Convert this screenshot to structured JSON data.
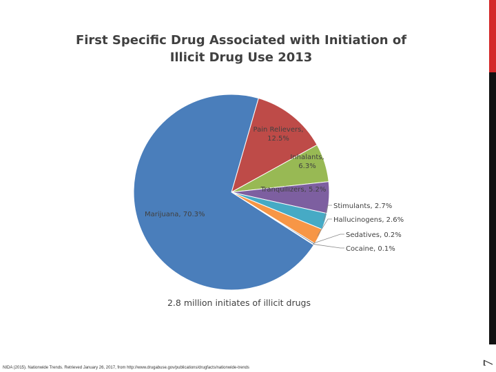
{
  "slide": {
    "number": "7",
    "footer": "NIDA (2015). Nationwide Trends. Retrieved January 26, 2017, from http://www.drugabuse.gov/publications/drugfacts/nationwide-trends"
  },
  "chart_data": {
    "type": "pie",
    "title_lines": [
      "First Specific Drug Associated with Initiation of",
      "Illicit Drug Use 2013"
    ],
    "caption": "2.8 million initiates of illicit drugs",
    "slices": [
      {
        "label": "Pain Relievers, 12.5%",
        "value": 12.5,
        "color": "#be4b48"
      },
      {
        "label": "Inhalants, 6.3%",
        "value": 6.3,
        "color": "#98b954"
      },
      {
        "label": "Tranquilizers, 5.2%",
        "value": 5.2,
        "color": "#7d5fa0"
      },
      {
        "label": "Stimulants, 2.7%",
        "value": 2.7,
        "color": "#46aac5"
      },
      {
        "label": "Hallucinogens, 2.6%",
        "value": 2.6,
        "color": "#f79646"
      },
      {
        "label": "Sedatives, 0.2%",
        "value": 0.2,
        "color": "#2c4d75"
      },
      {
        "label": "Cocaine, 0.1%",
        "value": 0.1,
        "color": "#772c2a"
      },
      {
        "label": "Marijuana, 70.3%",
        "value": 70.3,
        "color": "#4a7ebb"
      }
    ]
  }
}
